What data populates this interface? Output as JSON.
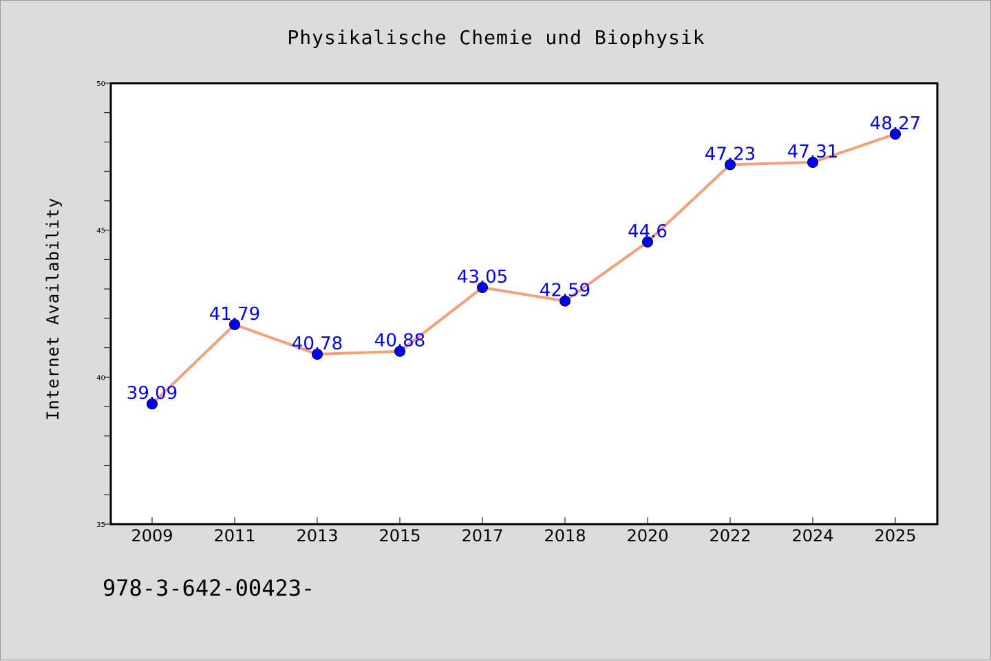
{
  "chart_data": {
    "type": "line",
    "title": "Physikalische Chemie und Biophysik",
    "xlabel": "",
    "ylabel": "Internet Availability",
    "categories": [
      "2009",
      "2011",
      "2013",
      "2015",
      "2017",
      "2018",
      "2020",
      "2022",
      "2024",
      "2025"
    ],
    "series": [
      {
        "name": "",
        "values": [
          39.09,
          41.79,
          40.78,
          40.88,
          43.05,
          42.59,
          44.6,
          47.23,
          47.31,
          48.27
        ],
        "labels": [
          "39.09",
          "41.79",
          "40.78",
          "40.88",
          "43.05",
          "42.59",
          "44.6",
          "47.23",
          "47.31",
          "48.27"
        ]
      }
    ],
    "ylim": [
      35,
      50
    ],
    "yticks": [
      35,
      40,
      45,
      50
    ],
    "ytick_labels": [
      "35",
      "40",
      "45",
      "50"
    ],
    "minor_ytick_step": 1,
    "grid": false,
    "colors": {
      "line": "#f4a07a",
      "marker": "#0000ff",
      "data_label": "#0000ff",
      "plot_background": "#ffffff",
      "figure_background": "#dcdcdc"
    }
  },
  "footer_text": "978-3-642-00423-"
}
